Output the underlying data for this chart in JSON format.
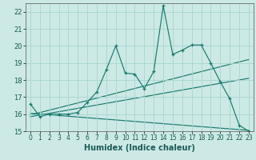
{
  "title": "",
  "xlabel": "Humidex (Indice chaleur)",
  "background_color": "#cce9e5",
  "grid_color": "#aad4d0",
  "line_color": "#1a7a6e",
  "xlim": [
    -0.5,
    23.5
  ],
  "ylim": [
    15,
    22.5
  ],
  "yticks": [
    15,
    16,
    17,
    18,
    19,
    20,
    21,
    22
  ],
  "xticks": [
    0,
    1,
    2,
    3,
    4,
    5,
    6,
    7,
    8,
    9,
    10,
    11,
    12,
    13,
    14,
    15,
    16,
    17,
    18,
    19,
    20,
    21,
    22,
    23
  ],
  "main_line_x": [
    0,
    1,
    2,
    3,
    4,
    5,
    6,
    7,
    8,
    9,
    10,
    11,
    12,
    13,
    14,
    15,
    16,
    17,
    18,
    19,
    20,
    21,
    22,
    23
  ],
  "main_line_y": [
    16.6,
    15.85,
    16.0,
    16.0,
    16.0,
    16.1,
    16.7,
    17.3,
    18.6,
    20.0,
    18.4,
    18.35,
    17.5,
    18.5,
    22.35,
    19.5,
    19.75,
    20.05,
    20.05,
    19.0,
    17.9,
    16.9,
    15.35,
    15.0
  ],
  "regression_lines": [
    {
      "x": [
        0,
        23
      ],
      "y": [
        15.95,
        19.2
      ]
    },
    {
      "x": [
        0,
        23
      ],
      "y": [
        15.85,
        18.1
      ]
    },
    {
      "x": [
        0,
        23
      ],
      "y": [
        16.05,
        15.05
      ]
    }
  ]
}
